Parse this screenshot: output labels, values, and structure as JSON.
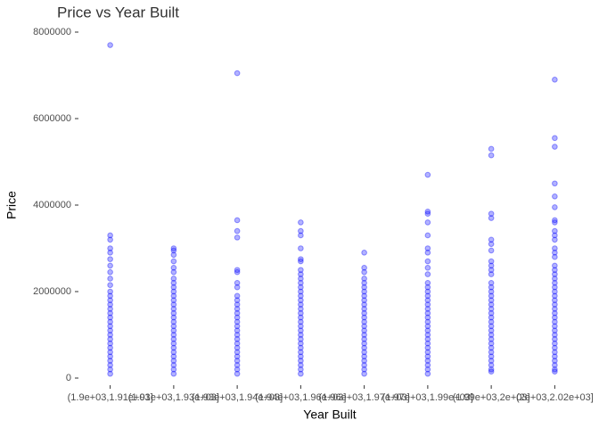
{
  "chart_data": {
    "type": "strip",
    "title": "Price vs Year Built",
    "x_label": "Year Built",
    "y_label": "Price",
    "categories": [
      "(1.9e+03,1.91e+03]",
      "(1.91e+03,1.93e+03]",
      "(1.93e+03,1.94e+03]",
      "(1.94e+03,1.96e+03]",
      "(1.96e+03,1.97e+03]",
      "(1.97e+03,1.99e+03]",
      "(1.99e+03,2e+03]",
      "(2e+03,2.02e+03]"
    ],
    "color": "#0000ff",
    "alpha": 0.3,
    "values": [
      [
        7700000,
        3300000,
        3200000,
        3000000,
        2900000,
        2750000,
        2600000,
        2450000,
        2300000,
        2150000,
        2000000,
        1900000,
        1800000,
        1700000,
        1600000,
        1500000,
        1400000,
        1300000,
        1200000,
        1100000,
        1000000,
        900000,
        800000,
        700000,
        600000,
        500000,
        400000,
        300000,
        200000,
        100000
      ],
      [
        3000000,
        2950000,
        2850000,
        2700000,
        2550000,
        2450000,
        2300000,
        2200000,
        2100000,
        2000000,
        1900000,
        1800000,
        1700000,
        1600000,
        1500000,
        1400000,
        1300000,
        1200000,
        1100000,
        1000000,
        900000,
        800000,
        700000,
        600000,
        500000,
        400000,
        300000,
        200000,
        100000
      ],
      [
        7050000,
        3650000,
        3400000,
        3250000,
        2500000,
        2450000,
        2200000,
        2100000,
        1900000,
        1800000,
        1700000,
        1600000,
        1500000,
        1400000,
        1300000,
        1200000,
        1100000,
        1000000,
        900000,
        800000,
        700000,
        600000,
        500000,
        400000,
        300000,
        200000,
        100000
      ],
      [
        3600000,
        3400000,
        3300000,
        3000000,
        2750000,
        2700000,
        2500000,
        2400000,
        2300000,
        2200000,
        2100000,
        2000000,
        1900000,
        1800000,
        1700000,
        1600000,
        1500000,
        1400000,
        1300000,
        1200000,
        1100000,
        1000000,
        900000,
        800000,
        700000,
        600000,
        500000,
        400000,
        300000,
        200000,
        100000
      ],
      [
        2900000,
        2550000,
        2450000,
        2300000,
        2200000,
        2100000,
        2000000,
        1900000,
        1800000,
        1700000,
        1600000,
        1500000,
        1400000,
        1300000,
        1200000,
        1100000,
        1000000,
        900000,
        800000,
        700000,
        600000,
        500000,
        400000,
        300000,
        200000,
        100000
      ],
      [
        4700000,
        3850000,
        3800000,
        3600000,
        3300000,
        3000000,
        2900000,
        2700000,
        2550000,
        2400000,
        2200000,
        2100000,
        2000000,
        1900000,
        1800000,
        1700000,
        1600000,
        1500000,
        1400000,
        1300000,
        1200000,
        1100000,
        1000000,
        900000,
        800000,
        700000,
        600000,
        500000,
        400000,
        300000,
        200000,
        100000
      ],
      [
        5300000,
        5150000,
        3800000,
        3700000,
        3200000,
        3100000,
        2950000,
        2700000,
        2600000,
        2500000,
        2400000,
        2200000,
        2100000,
        2000000,
        1900000,
        1800000,
        1700000,
        1600000,
        1500000,
        1400000,
        1300000,
        1200000,
        1100000,
        1000000,
        900000,
        800000,
        700000,
        600000,
        500000,
        400000,
        300000,
        200000,
        150000
      ],
      [
        6900000,
        5550000,
        5350000,
        4500000,
        4200000,
        3950000,
        3650000,
        3600000,
        3400000,
        3300000,
        3200000,
        3000000,
        2900000,
        2800000,
        2600000,
        2500000,
        2400000,
        2300000,
        2200000,
        2100000,
        2000000,
        1900000,
        1800000,
        1700000,
        1600000,
        1500000,
        1400000,
        1300000,
        1200000,
        1100000,
        1000000,
        900000,
        800000,
        700000,
        600000,
        500000,
        400000,
        300000,
        200000,
        150000
      ]
    ],
    "ylim": [
      -165000,
      8165000
    ],
    "yticks": [
      0,
      2000000,
      4000000,
      6000000,
      8000000
    ],
    "grid": false
  }
}
